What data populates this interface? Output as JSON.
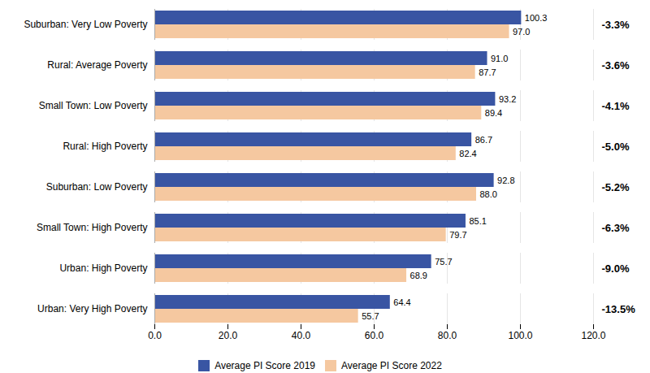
{
  "chart_data": {
    "type": "bar",
    "orientation": "horizontal",
    "categories": [
      "Urban: Very High Poverty",
      "Urban: High Poverty",
      "Small Town: High Poverty",
      "Suburban: Low Poverty",
      "Rural: High Poverty",
      "Small Town: Low Poverty",
      "Rural: Average Poverty",
      "Suburban: Very Low Poverty"
    ],
    "series": [
      {
        "name": "Average PI Score 2019",
        "color": "#3955a3",
        "values": [
          64.4,
          75.7,
          85.1,
          92.8,
          86.7,
          93.2,
          91.0,
          100.3
        ],
        "value_labels": [
          "64.4",
          "75.7",
          "85.1",
          "92.8",
          "86.7",
          "93.2",
          "91.0",
          "100.3"
        ]
      },
      {
        "name": "Average PI Score 2022",
        "color": "#f5c8a0",
        "values": [
          55.7,
          68.9,
          79.7,
          88.0,
          82.4,
          89.4,
          87.7,
          97.0
        ],
        "value_labels": [
          "55.7",
          "68.9",
          "79.7",
          "88.0",
          "82.4",
          "89.4",
          "87.7",
          "97.0"
        ]
      }
    ],
    "annotations": [
      "-13.5%",
      "-9.0%",
      "-6.3%",
      "-5.2%",
      "-5.0%",
      "-4.1%",
      "-3.6%",
      "-3.3%"
    ],
    "xlim": [
      0,
      120
    ],
    "xticks": [
      {
        "value": 0,
        "label": "0.0"
      },
      {
        "value": 20,
        "label": "20.0"
      },
      {
        "value": 40,
        "label": "40.0"
      },
      {
        "value": 60,
        "label": "60.0"
      },
      {
        "value": 80,
        "label": "80.0"
      },
      {
        "value": 100,
        "label": "100.0"
      },
      {
        "value": 120,
        "label": "120.0"
      }
    ],
    "grid": true,
    "data_labels": true,
    "legend": "bottom"
  }
}
